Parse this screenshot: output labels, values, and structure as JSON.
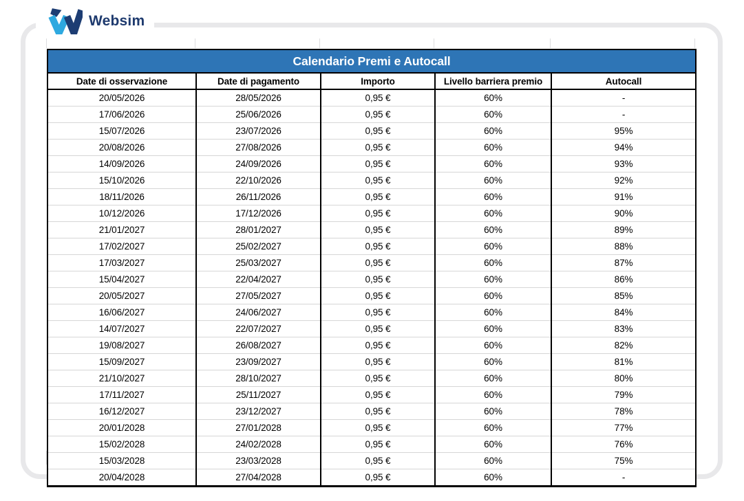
{
  "brand": {
    "name": "Websim",
    "logo_light_blue": "#2EA9E0",
    "logo_navy": "#1D3D73",
    "text_color": "#1E3A6E"
  },
  "colors": {
    "title_bar_blue": "#2E75B6",
    "title_text": "#FFFFFF",
    "card_border": "#E8E8EA",
    "table_border": "#000000",
    "row_separator": "#D6D6D6"
  },
  "table": {
    "title": "Calendario Premi e Autocall",
    "columns": [
      "Date di osservazione",
      "Date di pagamento",
      "Importo",
      "Livello barriera premio",
      "Autocall"
    ],
    "rows": [
      [
        "20/05/2026",
        "28/05/2026",
        "0,95 €",
        "60%",
        "-"
      ],
      [
        "17/06/2026",
        "25/06/2026",
        "0,95 €",
        "60%",
        "-"
      ],
      [
        "15/07/2026",
        "23/07/2026",
        "0,95 €",
        "60%",
        "95%"
      ],
      [
        "20/08/2026",
        "27/08/2026",
        "0,95 €",
        "60%",
        "94%"
      ],
      [
        "14/09/2026",
        "24/09/2026",
        "0,95 €",
        "60%",
        "93%"
      ],
      [
        "15/10/2026",
        "22/10/2026",
        "0,95 €",
        "60%",
        "92%"
      ],
      [
        "18/11/2026",
        "26/11/2026",
        "0,95 €",
        "60%",
        "91%"
      ],
      [
        "10/12/2026",
        "17/12/2026",
        "0,95 €",
        "60%",
        "90%"
      ],
      [
        "21/01/2027",
        "28/01/2027",
        "0,95 €",
        "60%",
        "89%"
      ],
      [
        "17/02/2027",
        "25/02/2027",
        "0,95 €",
        "60%",
        "88%"
      ],
      [
        "17/03/2027",
        "25/03/2027",
        "0,95 €",
        "60%",
        "87%"
      ],
      [
        "15/04/2027",
        "22/04/2027",
        "0,95 €",
        "60%",
        "86%"
      ],
      [
        "20/05/2027",
        "27/05/2027",
        "0,95 €",
        "60%",
        "85%"
      ],
      [
        "16/06/2027",
        "24/06/2027",
        "0,95 €",
        "60%",
        "84%"
      ],
      [
        "14/07/2027",
        "22/07/2027",
        "0,95 €",
        "60%",
        "83%"
      ],
      [
        "19/08/2027",
        "26/08/2027",
        "0,95 €",
        "60%",
        "82%"
      ],
      [
        "15/09/2027",
        "23/09/2027",
        "0,95 €",
        "60%",
        "81%"
      ],
      [
        "21/10/2027",
        "28/10/2027",
        "0,95 €",
        "60%",
        "80%"
      ],
      [
        "17/11/2027",
        "25/11/2027",
        "0,95 €",
        "60%",
        "79%"
      ],
      [
        "16/12/2027",
        "23/12/2027",
        "0,95 €",
        "60%",
        "78%"
      ],
      [
        "20/01/2028",
        "27/01/2028",
        "0,95 €",
        "60%",
        "77%"
      ],
      [
        "15/02/2028",
        "24/02/2028",
        "0,95 €",
        "60%",
        "76%"
      ],
      [
        "15/03/2028",
        "23/03/2028",
        "0,95 €",
        "60%",
        "75%"
      ],
      [
        "20/04/2028",
        "27/04/2028",
        "0,95 €",
        "60%",
        "-"
      ]
    ]
  }
}
